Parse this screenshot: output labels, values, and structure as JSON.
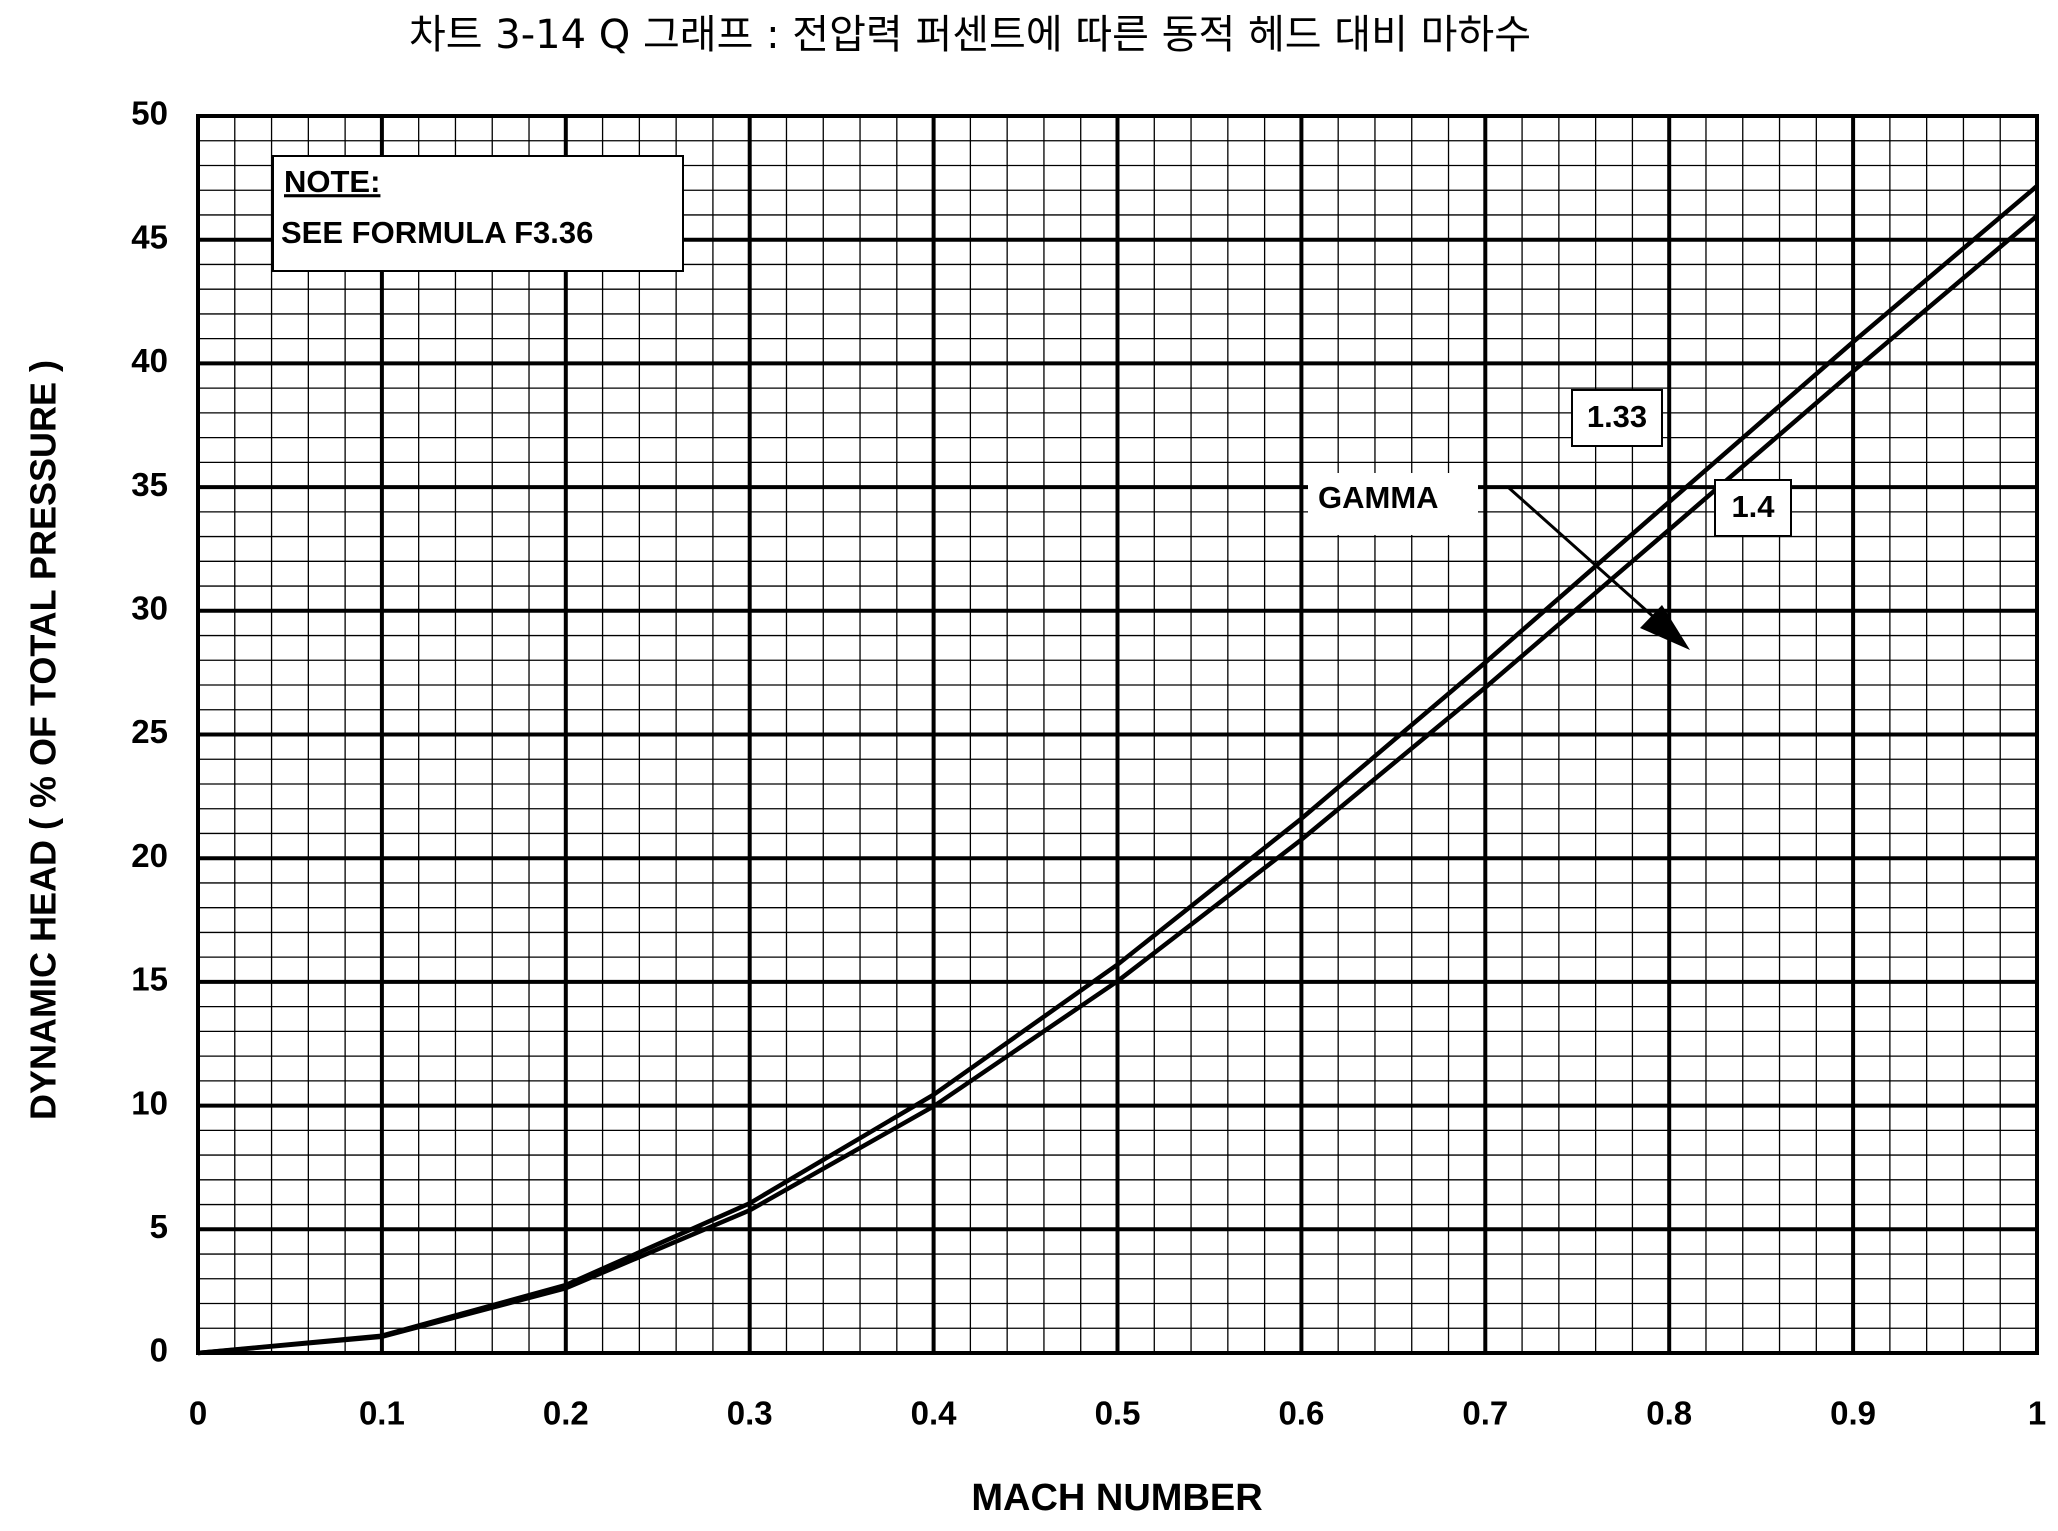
{
  "chart_data": {
    "type": "line",
    "title": "차트 3-14 Q 그래프 : 전압력 퍼센트에 따른 동적 헤드 대비 마하수",
    "x_label": "MACH NUMBER",
    "y_label": "DYNAMIC HEAD ( % OF TOTAL  PRESSURE )",
    "annotations": {
      "note_title": "NOTE:",
      "note_text": "SEE FORMULA F3.36",
      "gamma": "GAMMA"
    },
    "x": [
      0,
      0.1,
      0.2,
      0.3,
      0.4,
      0.5,
      0.6,
      0.7,
      0.8,
      0.9,
      1
    ],
    "series": [
      {
        "name": "1.33",
        "color": "#000000",
        "values": [
          0,
          0.66,
          2.62,
          5.77,
          9.97,
          15.03,
          20.75,
          26.9,
          33.28,
          39.68,
          45.96
        ]
      },
      {
        "name": "1.4",
        "color": "#000000",
        "values": [
          0,
          0.7,
          2.75,
          6.05,
          10.44,
          15.7,
          21.6,
          27.91,
          34.4,
          40.87,
          47.17
        ]
      }
    ],
    "xlim": [
      0,
      1
    ],
    "xticks": [
      0,
      0.1,
      0.2,
      0.3,
      0.4,
      0.5,
      0.6,
      0.7,
      0.8,
      0.9,
      1
    ],
    "ylim": [
      0,
      50
    ],
    "yticks": [
      0,
      5,
      10,
      15,
      20,
      25,
      30,
      35,
      40,
      45,
      50
    ],
    "grid": true
  }
}
